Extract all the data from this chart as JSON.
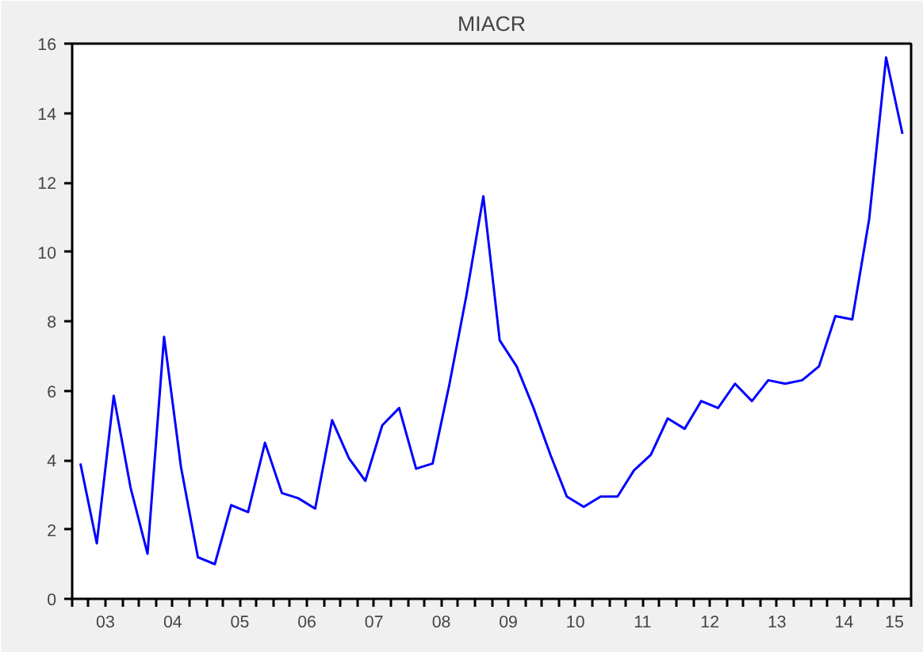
{
  "chart_data": {
    "type": "line",
    "title": "MIACR",
    "x": [
      "2003-02-15",
      "2003-05-15",
      "2003-08-15",
      "2003-11-15",
      "2004-02-15",
      "2004-05-15",
      "2004-08-15",
      "2004-11-15",
      "2005-02-15",
      "2005-05-15",
      "2005-08-15",
      "2005-11-15",
      "2006-02-15",
      "2006-05-15",
      "2006-08-15",
      "2006-11-15",
      "2007-02-15",
      "2007-05-15",
      "2007-08-15",
      "2007-11-15",
      "2008-02-15",
      "2008-05-15",
      "2008-08-15",
      "2008-11-15",
      "2009-02-15",
      "2009-05-15",
      "2009-08-15",
      "2009-11-15",
      "2010-02-15",
      "2010-05-15",
      "2010-08-15",
      "2010-11-15",
      "2011-02-15",
      "2011-05-15",
      "2011-08-15",
      "2011-11-15",
      "2012-02-15",
      "2012-05-15",
      "2012-08-15",
      "2012-11-15",
      "2013-02-15",
      "2013-05-15",
      "2013-08-15",
      "2013-11-15",
      "2014-02-15",
      "2014-05-15",
      "2014-08-15",
      "2014-11-15",
      "2015-02-15",
      "2015-05-15"
    ],
    "series": [
      {
        "color": "#0000ff",
        "values": [
          3.9,
          1.6,
          5.85,
          3.2,
          1.3,
          7.55,
          3.8,
          1.2,
          1.0,
          2.7,
          2.5,
          4.5,
          3.05,
          2.9,
          2.6,
          5.15,
          4.05,
          3.4,
          5.0,
          5.5,
          3.75,
          3.9,
          6.2,
          8.75,
          11.6,
          7.45,
          6.7,
          5.5,
          4.15,
          2.95,
          2.65,
          2.95,
          2.95,
          3.7,
          4.15,
          5.2,
          4.9,
          5.7,
          5.5,
          6.2,
          5.7,
          6.3,
          6.2,
          6.3,
          6.7,
          8.15,
          8.05,
          10.95,
          15.6,
          13.4
        ]
      }
    ],
    "xlim": [
      "2003-01-01",
      "2015-07-01"
    ],
    "xticks": [
      {
        "value": "2003-01-01",
        "label": null
      },
      {
        "value": "2003-04-01",
        "label": null
      },
      {
        "value": "2003-07-01",
        "label": "03"
      },
      {
        "value": "2003-10-01",
        "label": null
      },
      {
        "value": "2004-01-01",
        "label": null
      },
      {
        "value": "2004-04-01",
        "label": null
      },
      {
        "value": "2004-07-01",
        "label": "04"
      },
      {
        "value": "2004-10-01",
        "label": null
      },
      {
        "value": "2005-01-01",
        "label": null
      },
      {
        "value": "2005-04-01",
        "label": null
      },
      {
        "value": "2005-07-01",
        "label": "05"
      },
      {
        "value": "2005-10-01",
        "label": null
      },
      {
        "value": "2006-01-01",
        "label": null
      },
      {
        "value": "2006-04-01",
        "label": null
      },
      {
        "value": "2006-07-01",
        "label": "06"
      },
      {
        "value": "2006-10-01",
        "label": null
      },
      {
        "value": "2007-01-01",
        "label": null
      },
      {
        "value": "2007-04-01",
        "label": null
      },
      {
        "value": "2007-07-01",
        "label": "07"
      },
      {
        "value": "2007-10-01",
        "label": null
      },
      {
        "value": "2008-01-01",
        "label": null
      },
      {
        "value": "2008-04-01",
        "label": null
      },
      {
        "value": "2008-07-01",
        "label": "08"
      },
      {
        "value": "2008-10-01",
        "label": null
      },
      {
        "value": "2009-01-01",
        "label": null
      },
      {
        "value": "2009-04-01",
        "label": null
      },
      {
        "value": "2009-07-01",
        "label": "09"
      },
      {
        "value": "2009-10-01",
        "label": null
      },
      {
        "value": "2010-01-01",
        "label": null
      },
      {
        "value": "2010-04-01",
        "label": null
      },
      {
        "value": "2010-07-01",
        "label": "10"
      },
      {
        "value": "2010-10-01",
        "label": null
      },
      {
        "value": "2011-01-01",
        "label": null
      },
      {
        "value": "2011-04-01",
        "label": null
      },
      {
        "value": "2011-07-01",
        "label": "11"
      },
      {
        "value": "2011-10-01",
        "label": null
      },
      {
        "value": "2012-01-01",
        "label": null
      },
      {
        "value": "2012-04-01",
        "label": null
      },
      {
        "value": "2012-07-01",
        "label": "12"
      },
      {
        "value": "2012-10-01",
        "label": null
      },
      {
        "value": "2013-01-01",
        "label": null
      },
      {
        "value": "2013-04-01",
        "label": null
      },
      {
        "value": "2013-07-01",
        "label": "13"
      },
      {
        "value": "2013-10-01",
        "label": null
      },
      {
        "value": "2014-01-01",
        "label": null
      },
      {
        "value": "2014-04-01",
        "label": null
      },
      {
        "value": "2014-07-01",
        "label": "14"
      },
      {
        "value": "2014-10-01",
        "label": null
      },
      {
        "value": "2015-01-01",
        "label": null
      },
      {
        "value": "2015-04-01",
        "label": "15"
      },
      {
        "value": "2015-07-01",
        "label": null
      }
    ],
    "ylim": [
      0,
      16
    ],
    "yticks": [
      0,
      2,
      4,
      6,
      8,
      10,
      12,
      14,
      16
    ],
    "marker": "none",
    "line_style": "solid"
  }
}
